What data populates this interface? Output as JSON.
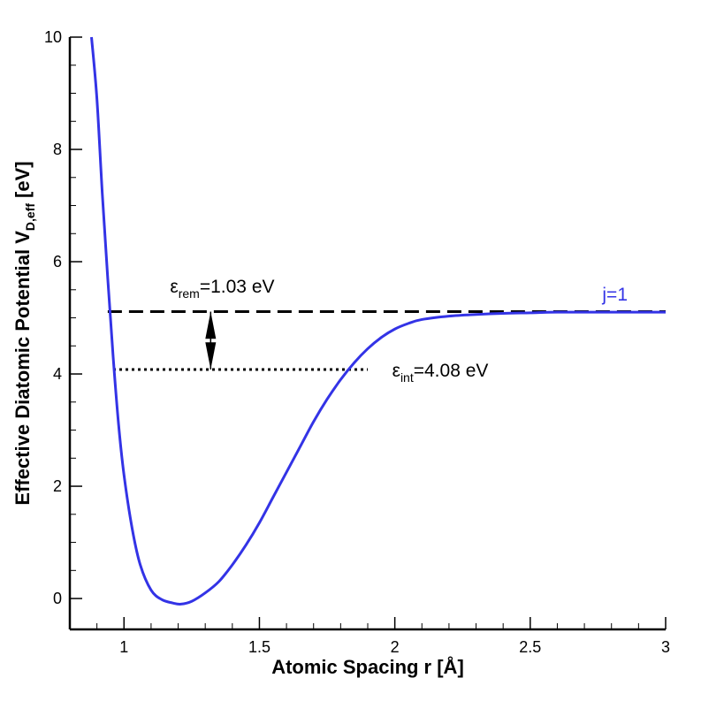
{
  "chart_data": {
    "type": "line",
    "title": "",
    "xlabel": "Atomic Spacing r [Å]",
    "ylabel_main": "Effective Diatomic Potential V",
    "ylabel_sub": "D,eff",
    "ylabel_unit": "[eV]",
    "xlim": [
      0.8,
      3.0
    ],
    "ylim": [
      -0.55,
      10.0
    ],
    "x_ticks": [
      1,
      1.5,
      2,
      2.5,
      3
    ],
    "x_tick_labels": [
      "1",
      "1.5",
      "2",
      "2.5",
      "3"
    ],
    "y_ticks": [
      0,
      2,
      4,
      6,
      8,
      10
    ],
    "y_tick_labels": [
      "0",
      "2",
      "4",
      "6",
      "8",
      "10"
    ],
    "grid": false,
    "series": [
      {
        "name": "j=1",
        "color": "#3333e6",
        "x": [
          0.88,
          0.9,
          0.92,
          0.94,
          0.96,
          0.98,
          1.0,
          1.03,
          1.06,
          1.1,
          1.14,
          1.18,
          1.21,
          1.25,
          1.3,
          1.35,
          1.4,
          1.45,
          1.5,
          1.55,
          1.6,
          1.65,
          1.7,
          1.75,
          1.8,
          1.85,
          1.9,
          1.95,
          2.0,
          2.05,
          2.1,
          2.2,
          2.3,
          2.4,
          2.5,
          2.6,
          2.8,
          3.0
        ],
        "y": [
          10.0,
          8.9,
          7.2,
          5.7,
          4.3,
          3.1,
          2.2,
          1.25,
          0.6,
          0.15,
          -0.02,
          -0.08,
          -0.1,
          -0.05,
          0.1,
          0.3,
          0.6,
          0.95,
          1.35,
          1.8,
          2.25,
          2.7,
          3.15,
          3.55,
          3.9,
          4.2,
          4.45,
          4.65,
          4.8,
          4.9,
          4.97,
          5.03,
          5.06,
          5.08,
          5.09,
          5.1,
          5.1,
          5.1
        ]
      }
    ],
    "reference_lines": [
      {
        "name": "dissociation-level",
        "style": "dashed",
        "y": 5.11,
        "x_range": [
          0.94,
          3.0
        ]
      },
      {
        "name": "internal-energy-level",
        "style": "dotted",
        "y": 4.08,
        "x_range": [
          0.96,
          1.9
        ]
      }
    ],
    "arrow": {
      "x": 1.32,
      "y_from": 4.08,
      "y_to": 5.11
    },
    "annotations": [
      {
        "id": "rem",
        "symbol": "ε",
        "sub": "rem",
        "text": "=1.03 eV",
        "x": 1.17,
        "y": 5.45
      },
      {
        "id": "int",
        "symbol": "ε",
        "sub": "int",
        "text": "=4.08 eV",
        "x": 1.99,
        "y": 3.95
      }
    ]
  }
}
